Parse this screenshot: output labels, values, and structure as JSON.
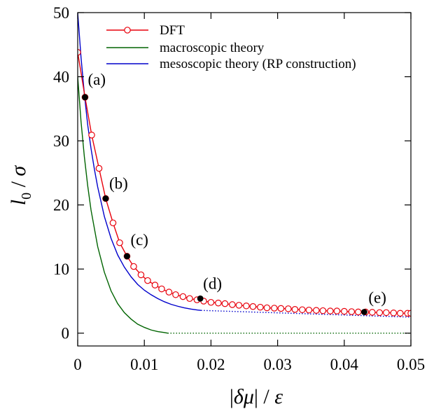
{
  "chart_data": {
    "type": "line",
    "xlabel": "|δμ| / ε",
    "ylabel": "l0 / σ",
    "xlim": [
      0,
      0.05
    ],
    "ylim": [
      -2,
      50
    ],
    "xticks": [
      0,
      0.01,
      0.02,
      0.03,
      0.04,
      0.05
    ],
    "xtick_labels": [
      "0",
      "0.01",
      "0.02",
      "0.03",
      "0.04",
      "0.05"
    ],
    "yticks": [
      0,
      10,
      20,
      30,
      40,
      50
    ],
    "ytick_labels": [
      "0",
      "10",
      "20",
      "30",
      "40",
      "50"
    ],
    "legend_position": "top-right",
    "series": [
      {
        "name": "DFT",
        "color": "#e8000b",
        "style": "line-open-circles",
        "x": [
          0.0,
          0.0011,
          0.0021,
          0.0032,
          0.0042,
          0.0053,
          0.0063,
          0.0074,
          0.0084,
          0.0095,
          0.0105,
          0.0116,
          0.0126,
          0.0137,
          0.0147,
          0.0158,
          0.0168,
          0.0179,
          0.0189,
          0.02,
          0.0211,
          0.0221,
          0.0232,
          0.0242,
          0.0253,
          0.0263,
          0.0274,
          0.0284,
          0.0295,
          0.0305,
          0.0316,
          0.0326,
          0.0337,
          0.0347,
          0.0358,
          0.0368,
          0.0379,
          0.0389,
          0.04,
          0.0411,
          0.0421,
          0.0432,
          0.0442,
          0.0453,
          0.0463,
          0.0474,
          0.0484,
          0.0495,
          0.05
        ],
        "y": [
          43.8,
          36.8,
          30.9,
          25.7,
          21.0,
          17.2,
          14.1,
          12.0,
          10.4,
          9.1,
          8.2,
          7.5,
          6.9,
          6.4,
          6.0,
          5.7,
          5.4,
          5.2,
          5.0,
          4.8,
          4.7,
          4.6,
          4.45,
          4.35,
          4.25,
          4.15,
          4.05,
          3.95,
          3.9,
          3.85,
          3.8,
          3.7,
          3.65,
          3.6,
          3.55,
          3.5,
          3.45,
          3.45,
          3.4,
          3.35,
          3.3,
          3.3,
          3.25,
          3.2,
          3.2,
          3.15,
          3.1,
          3.1,
          3.1
        ]
      },
      {
        "name": "macroscopic theory",
        "color": "#006400",
        "style": "line",
        "x": [
          0.0,
          0.0005,
          0.001,
          0.0015,
          0.002,
          0.003,
          0.004,
          0.005,
          0.006,
          0.007,
          0.008,
          0.009,
          0.01,
          0.011,
          0.012,
          0.013,
          0.0135
        ],
        "y": [
          40.0,
          33.0,
          27.5,
          23.0,
          19.2,
          13.5,
          9.5,
          6.6,
          4.6,
          3.2,
          2.2,
          1.4,
          0.9,
          0.5,
          0.25,
          0.1,
          0.0
        ],
        "dotted_extension": {
          "x": [
            0.0135,
            0.05
          ],
          "y": [
            0.0,
            0.0
          ]
        }
      },
      {
        "name": "mesoscopic theory (RP construction)",
        "color": "#0000cc",
        "style": "line",
        "x": [
          0.0,
          0.0005,
          0.001,
          0.0015,
          0.002,
          0.0025,
          0.003,
          0.004,
          0.005,
          0.006,
          0.007,
          0.008,
          0.009,
          0.01,
          0.011,
          0.012,
          0.013,
          0.014,
          0.015,
          0.016,
          0.017,
          0.018,
          0.0185
        ],
        "y": [
          50.0,
          43.0,
          37.3,
          32.5,
          28.8,
          25.6,
          22.8,
          18.2,
          14.8,
          12.2,
          10.3,
          8.8,
          7.6,
          6.7,
          6.0,
          5.4,
          4.9,
          4.5,
          4.2,
          3.95,
          3.75,
          3.6,
          3.55
        ],
        "dotted_extension": {
          "x": [
            0.0185,
            0.05
          ],
          "y": [
            3.55,
            2.5
          ]
        }
      }
    ],
    "annotations": [
      {
        "label": "(a)",
        "x": 0.0011,
        "y": 36.8
      },
      {
        "label": "(b)",
        "x": 0.0042,
        "y": 21.0
      },
      {
        "label": "(c)",
        "x": 0.0074,
        "y": 12.0
      },
      {
        "label": "(d)",
        "x": 0.0184,
        "y": 5.4
      },
      {
        "label": "(e)",
        "x": 0.043,
        "y": 3.3
      }
    ]
  }
}
